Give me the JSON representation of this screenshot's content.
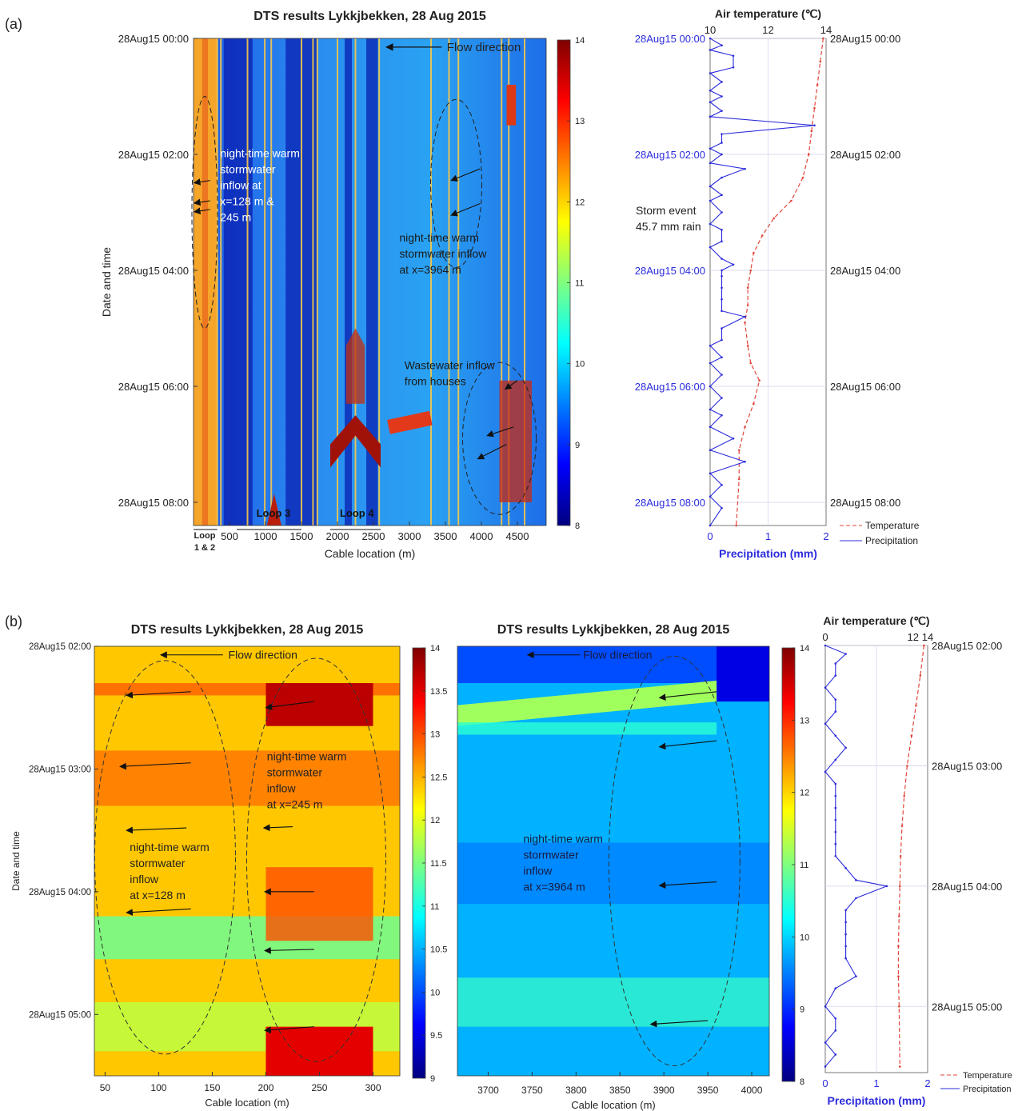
{
  "panel_labels": [
    "(a)",
    "(b)"
  ],
  "colors": {
    "precipitation": "#2b2bdc",
    "temperature": "#e0463a",
    "heatmap_ramp": [
      "#00007f",
      "#0000ff",
      "#007fff",
      "#00ffff",
      "#7fff7f",
      "#ffff00",
      "#ff7f00",
      "#ff0000",
      "#7f0000"
    ]
  },
  "chart_data": [
    {
      "id": "a-heatmap",
      "type": "heatmap",
      "title": "DTS results Lykkjbekken, 28 Aug 2015",
      "xlabel": "Cable location (m)",
      "ylabel": "Date and time",
      "xlim": [
        0,
        4900
      ],
      "xticks": [
        500,
        1000,
        1500,
        2000,
        2500,
        3000,
        3500,
        4000,
        4500
      ],
      "ylim_hours": [
        0,
        8.4
      ],
      "yticks": [
        {
          "h": 0,
          "label": "28Aug15 00:00"
        },
        {
          "h": 2,
          "label": "28Aug15 02:00"
        },
        {
          "h": 4,
          "label": "28Aug15 04:00"
        },
        {
          "h": 6,
          "label": "28Aug15 06:00"
        },
        {
          "h": 8,
          "label": "28Aug15 08:00"
        }
      ],
      "colorbar": {
        "min": 8,
        "max": 14,
        "ticks": [
          8,
          9,
          10,
          11,
          12,
          13,
          14
        ]
      },
      "annotations": [
        "Flow direction",
        "night-time warm\nstormwater\ninflow at\nx=128 m &\n245 m",
        "night-time warm\nstormwater inflow\nat x=3964 m",
        "Wastewater inflow\nfrom houses",
        "Loop 3",
        "Loop 4",
        "Loop\n1 & 2"
      ]
    },
    {
      "id": "a-weather",
      "type": "line",
      "xlabel": "Precipitation (mm)",
      "x2label": "Air temperature (℃)",
      "xlim": [
        0,
        2
      ],
      "xticks": [
        0,
        1,
        2
      ],
      "x2lim": [
        10,
        14
      ],
      "x2ticks": [
        10,
        12,
        14
      ],
      "ylim_hours": [
        0,
        8.4
      ],
      "yticks_left": [
        "28Aug15 00:00",
        "28Aug15 02:00",
        "28Aug15 04:00",
        "28Aug15 06:00",
        "28Aug15 08:00"
      ],
      "yticks_right": [
        "28Aug15 00:00",
        "28Aug15 02:00",
        "28Aug15 04:00",
        "28Aug15 06:00",
        "28Aug15 08:00"
      ],
      "annotation": "Storm event\n45.7 mm rain",
      "series": [
        {
          "name": "Temperature",
          "x": [
            13.9,
            13.8,
            13.7,
            13.6,
            13.5,
            13.4,
            13.2,
            12.8,
            12.2,
            11.8,
            11.5,
            11.4,
            11.3,
            11.3,
            11.2,
            11.3,
            11.4,
            11.7,
            11.5,
            11.2,
            11.0,
            11.0,
            10.9
          ],
          "y": [
            0,
            0.4,
            0.8,
            1.2,
            1.6,
            2.0,
            2.4,
            2.8,
            3.1,
            3.4,
            3.7,
            4.0,
            4.3,
            4.6,
            4.9,
            5.3,
            5.6,
            5.9,
            6.3,
            6.7,
            7.1,
            7.6,
            8.4
          ]
        },
        {
          "name": "Precipitation",
          "x": [
            0,
            0.2,
            0,
            0.4,
            0.4,
            0,
            0.2,
            0,
            0.2,
            0,
            0.2,
            0,
            1.8,
            0.2,
            0.2,
            0,
            0.2,
            0,
            0.6,
            0.2,
            0,
            0.2,
            0,
            0.2,
            0,
            0.2,
            0.2,
            0,
            0.2,
            0.4,
            0.2,
            0.2,
            0.2,
            0.2,
            0.2,
            0.6,
            0.2,
            0.2,
            0,
            0.2,
            0,
            0.2,
            0,
            0.2,
            0,
            0.2,
            0,
            0.4,
            0,
            0.6,
            0,
            0.2,
            0,
            0.2,
            0
          ],
          "y": [
            0,
            0.12,
            0.2,
            0.3,
            0.5,
            0.6,
            0.75,
            0.9,
            1.0,
            1.1,
            1.25,
            1.35,
            1.5,
            1.65,
            1.8,
            1.9,
            2.0,
            2.15,
            2.25,
            2.4,
            2.55,
            2.7,
            2.8,
            3.0,
            3.2,
            3.3,
            3.5,
            3.6,
            3.8,
            3.9,
            4.0,
            4.1,
            4.3,
            4.5,
            4.7,
            4.8,
            5.0,
            5.2,
            5.3,
            5.5,
            5.6,
            5.8,
            6.0,
            6.2,
            6.4,
            6.5,
            6.7,
            6.9,
            7.1,
            7.3,
            7.5,
            7.7,
            7.9,
            8.1,
            8.4
          ]
        }
      ],
      "legend": [
        "Temperature",
        "Precipitation"
      ],
      "legend_position": "bottom-right"
    },
    {
      "id": "b-heatmap-1",
      "type": "heatmap",
      "title": "DTS results Lykkjbekken, 28 Aug 2015",
      "xlabel": "Cable location (m)",
      "ylabel": "Date and time",
      "xlim": [
        40,
        325
      ],
      "xticks": [
        50,
        100,
        150,
        200,
        250,
        300
      ],
      "ylim_hours": [
        2.0,
        5.5
      ],
      "yticks": [
        {
          "h": 2,
          "label": "28Aug15 02:00"
        },
        {
          "h": 3,
          "label": "28Aug15 03:00"
        },
        {
          "h": 4,
          "label": "28Aug15 04:00"
        },
        {
          "h": 5,
          "label": "28Aug15 05:00"
        }
      ],
      "colorbar": {
        "min": 9,
        "max": 14,
        "ticks": [
          9,
          9.5,
          10,
          10.5,
          11,
          11.5,
          12,
          12.5,
          13,
          13.5,
          14
        ]
      },
      "annotations": [
        "Flow direction",
        "night-time warm\nstormwater\ninflow\nat x=245 m",
        "night-time warm\nstormwater\ninflow\nat x=128 m"
      ]
    },
    {
      "id": "b-heatmap-2",
      "type": "heatmap",
      "title": "DTS results Lykkjbekken, 28 Aug 2015",
      "xlabel": "Cable location (m)",
      "xlim": [
        3665,
        4020
      ],
      "xticks": [
        3700,
        3750,
        3800,
        3850,
        3900,
        3950,
        4000
      ],
      "ylim_hours": [
        2.0,
        5.5
      ],
      "colorbar": {
        "min": 8,
        "max": 14,
        "ticks": [
          8,
          9,
          10,
          11,
          12,
          13,
          14
        ]
      },
      "annotations": [
        "Flow direction",
        "night-time warm\nstormwater\ninflow\nat x=3964 m"
      ]
    },
    {
      "id": "b-weather",
      "type": "line",
      "xlabel": "Precipitation (mm)",
      "x2label": "Air temperature (℃)",
      "xlim": [
        0,
        2
      ],
      "xticks": [
        0,
        1,
        2
      ],
      "x2lim": [
        0,
        14
      ],
      "x2ticks": [
        0,
        12,
        14
      ],
      "ylim_hours": [
        2.0,
        5.55
      ],
      "yticks_right": [
        "28Aug15 02:00",
        "28Aug15 03:00",
        "28Aug15 04:00",
        "28Aug15 05:00"
      ],
      "series": [
        {
          "name": "Temperature",
          "x": [
            13.5,
            13.0,
            12.4,
            11.8,
            11.2,
            10.8,
            10.5,
            10.3,
            10.2,
            10.1,
            10.0,
            10.0,
            10.1,
            10.2
          ],
          "y": [
            2.0,
            2.25,
            2.5,
            2.75,
            3.0,
            3.25,
            3.5,
            3.75,
            4.0,
            4.25,
            4.5,
            4.75,
            5.0,
            5.5
          ]
        },
        {
          "name": "Precipitation",
          "x": [
            0,
            0.4,
            0.2,
            0.2,
            0,
            0.2,
            0.2,
            0,
            0.2,
            0.4,
            0.2,
            0,
            0.2,
            0.2,
            0.2,
            0.2,
            0.2,
            0.2,
            0.2,
            0.4,
            0.6,
            1.2,
            0.6,
            0.4,
            0.4,
            0.4,
            0.4,
            0.4,
            0.6,
            0.2,
            0,
            0.2,
            0.2,
            0,
            0.2,
            0
          ],
          "y": [
            2.0,
            2.07,
            2.15,
            2.25,
            2.35,
            2.45,
            2.55,
            2.65,
            2.75,
            2.85,
            2.95,
            3.05,
            3.15,
            3.25,
            3.35,
            3.45,
            3.55,
            3.65,
            3.75,
            3.85,
            3.95,
            4.0,
            4.1,
            4.2,
            4.3,
            4.4,
            4.5,
            4.6,
            4.75,
            4.85,
            5.0,
            5.1,
            5.2,
            5.3,
            5.4,
            5.5
          ]
        }
      ],
      "legend": [
        "Temperature",
        "Precipitation"
      ],
      "legend_position": "bottom-right"
    }
  ]
}
